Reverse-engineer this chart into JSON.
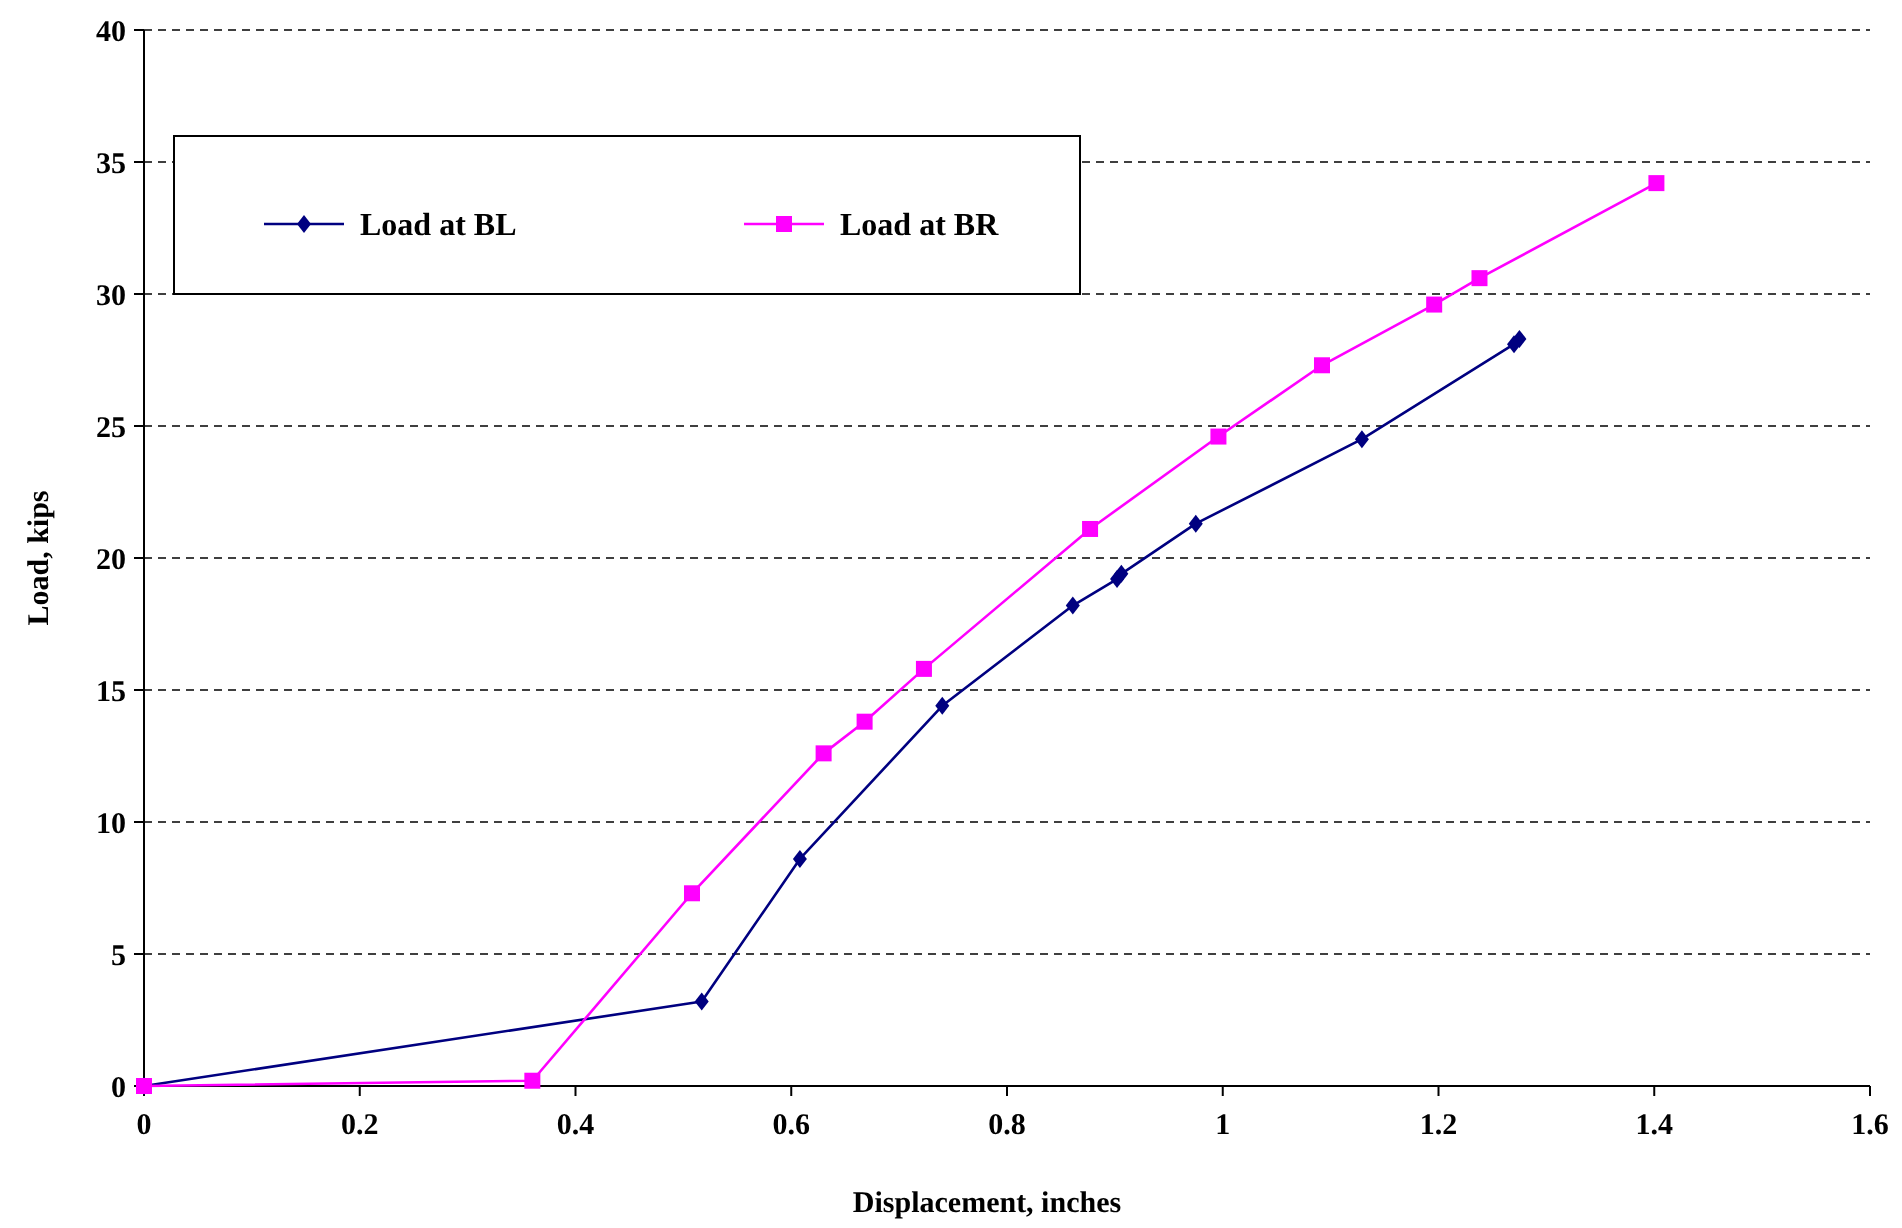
{
  "chart_data": {
    "type": "line",
    "xlabel": "Displacement, inches",
    "ylabel": "Load, kips",
    "xlim": [
      0,
      1.6
    ],
    "xticks": [
      0,
      0.2,
      0.4,
      0.6,
      0.8,
      1,
      1.2,
      1.4,
      1.6
    ],
    "ylim": [
      0,
      40
    ],
    "yticks": [
      0,
      5,
      10,
      15,
      20,
      25,
      30,
      35,
      40
    ],
    "grid": "y",
    "legend": "top left",
    "line_style": "solid",
    "series": [
      {
        "name": "Load at BL",
        "color": "#000080",
        "marker": "diamond",
        "x": [
          0,
          0.517,
          0.608,
          0.74,
          0.861,
          0.902,
          0.906,
          0.975,
          1.129,
          1.27,
          1.275
        ],
        "values": [
          0,
          3.2,
          8.6,
          14.4,
          18.2,
          19.2,
          19.4,
          21.3,
          24.5,
          28.1,
          28.3
        ]
      },
      {
        "name": "Load at BR",
        "color": "#ff00ff",
        "marker": "square",
        "x": [
          0,
          0.36,
          0.508,
          0.63,
          0.668,
          0.723,
          0.877,
          0.996,
          1.092,
          1.196,
          1.238,
          1.402
        ],
        "values": [
          0,
          0.2,
          7.3,
          12.6,
          13.8,
          15.8,
          21.1,
          24.6,
          27.3,
          29.6,
          30.6,
          34.2
        ]
      }
    ]
  }
}
